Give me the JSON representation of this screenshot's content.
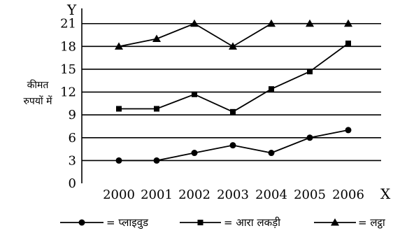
{
  "chart_data": {
    "type": "line",
    "x": [
      "2000",
      "2001",
      "2002",
      "2003",
      "2004",
      "2005",
      "2006"
    ],
    "x_axis_letter": "X",
    "y_axis_letter": "Y",
    "ylabel_lines": [
      "कीमत",
      "रुपयों में"
    ],
    "yticks": [
      "0",
      "3",
      "6",
      "9",
      "12",
      "15",
      "18",
      "21"
    ],
    "ylim": [
      0,
      23
    ],
    "grid": "horizontal",
    "legend_position": "bottom",
    "series": [
      {
        "name": "प्लाइवुड",
        "legend_text": "= प्लाइवुड",
        "marker": "circle",
        "values": [
          3,
          3,
          4,
          5,
          4,
          6,
          7
        ]
      },
      {
        "name": "आरा लकड़ी",
        "legend_text": "= आरा लकड़ी",
        "marker": "square",
        "values": [
          9.8,
          9.8,
          11.7,
          9.4,
          12.4,
          14.7,
          18.4
        ]
      },
      {
        "name": "लट्ठा",
        "legend_text": "= लट्ठा",
        "marker": "triangle",
        "values": [
          18,
          19,
          21,
          18,
          21,
          21,
          21
        ]
      }
    ]
  }
}
